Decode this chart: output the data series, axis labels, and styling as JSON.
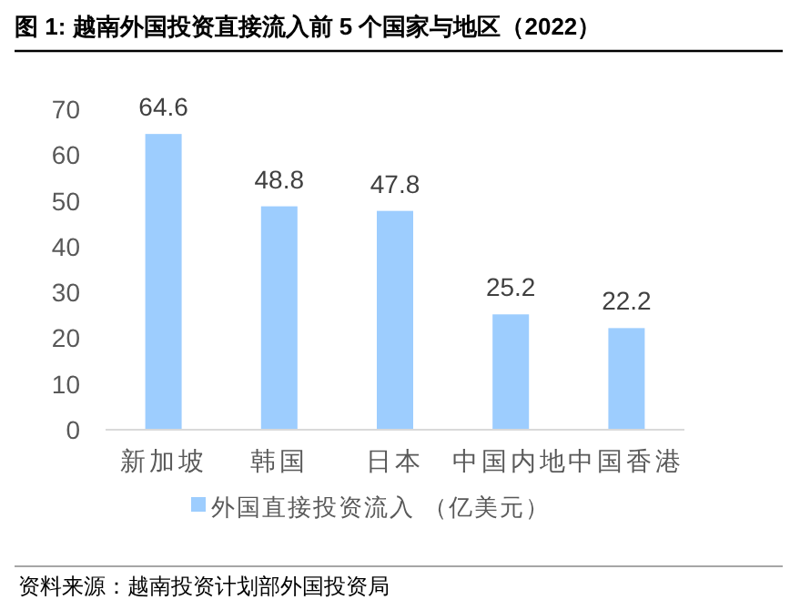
{
  "chart_data": {
    "type": "bar",
    "title": "图 1: 越南外国投资直接流入前 5 个国家与地区（2022）",
    "categories": [
      "新加坡",
      "韩国",
      "日本",
      "中国内地",
      "中国香港"
    ],
    "series": [
      {
        "name": "外国直接投资流入 （亿美元）",
        "color": "#9dcdfe",
        "values": [
          64.6,
          48.8,
          47.8,
          25.2,
          22.2
        ]
      }
    ],
    "ylim": [
      0,
      70
    ],
    "yticks": [
      0,
      10,
      20,
      30,
      40,
      50,
      60,
      70
    ],
    "data_labels": true,
    "legend": "bottom",
    "grid": false,
    "annotations": [
      "资料来源：越南投资计划部外国投资局"
    ]
  }
}
